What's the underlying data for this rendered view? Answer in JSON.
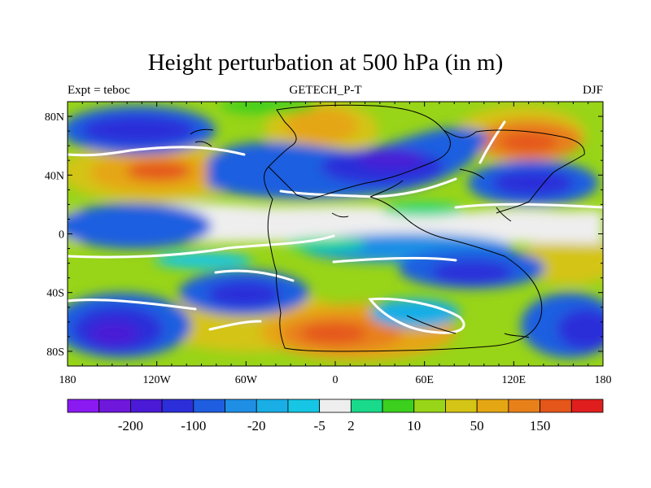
{
  "map": {
    "title": "Height perturbation at 500 hPa (in m)",
    "left_label": "Expt = teboc",
    "center_label": "GETECH_P-T",
    "right_label": "DJF",
    "projection": "cylindrical equidistant",
    "lon_range": [
      -180,
      180
    ],
    "lat_range": [
      -90,
      90
    ],
    "x_ticks": [
      {
        "value": -180,
        "label": "180"
      },
      {
        "value": -120,
        "label": "120W"
      },
      {
        "value": -60,
        "label": "60W"
      },
      {
        "value": 0,
        "label": "0"
      },
      {
        "value": 60,
        "label": "60E"
      },
      {
        "value": 120,
        "label": "120E"
      },
      {
        "value": 180,
        "label": "180"
      }
    ],
    "y_ticks": [
      {
        "value": 80,
        "label": "80N"
      },
      {
        "value": 40,
        "label": "40N"
      },
      {
        "value": 0,
        "label": "0"
      },
      {
        "value": -40,
        "label": "40S"
      },
      {
        "value": -80,
        "label": "80S"
      }
    ],
    "colorbar": {
      "colors": [
        "#8a19f2",
        "#6f18dc",
        "#4a1ad6",
        "#2c2fd9",
        "#1f5ee0",
        "#1f8fe5",
        "#19aee6",
        "#16c6e4",
        "#eeeeee",
        "#19d98a",
        "#3ccf1e",
        "#98d418",
        "#d4c416",
        "#e5a613",
        "#e8801a",
        "#e5561a",
        "#e01e1e"
      ],
      "labels": [
        {
          "after_index": 1,
          "text": "-200"
        },
        {
          "after_index": 3,
          "text": "-100"
        },
        {
          "after_index": 5,
          "text": "-20"
        },
        {
          "after_index": 7,
          "text": "-5"
        },
        {
          "after_index": 8,
          "text": "2"
        },
        {
          "after_index": 10,
          "text": "10"
        },
        {
          "after_index": 12,
          "text": "50"
        },
        {
          "after_index": 14,
          "text": "150"
        }
      ]
    }
  }
}
